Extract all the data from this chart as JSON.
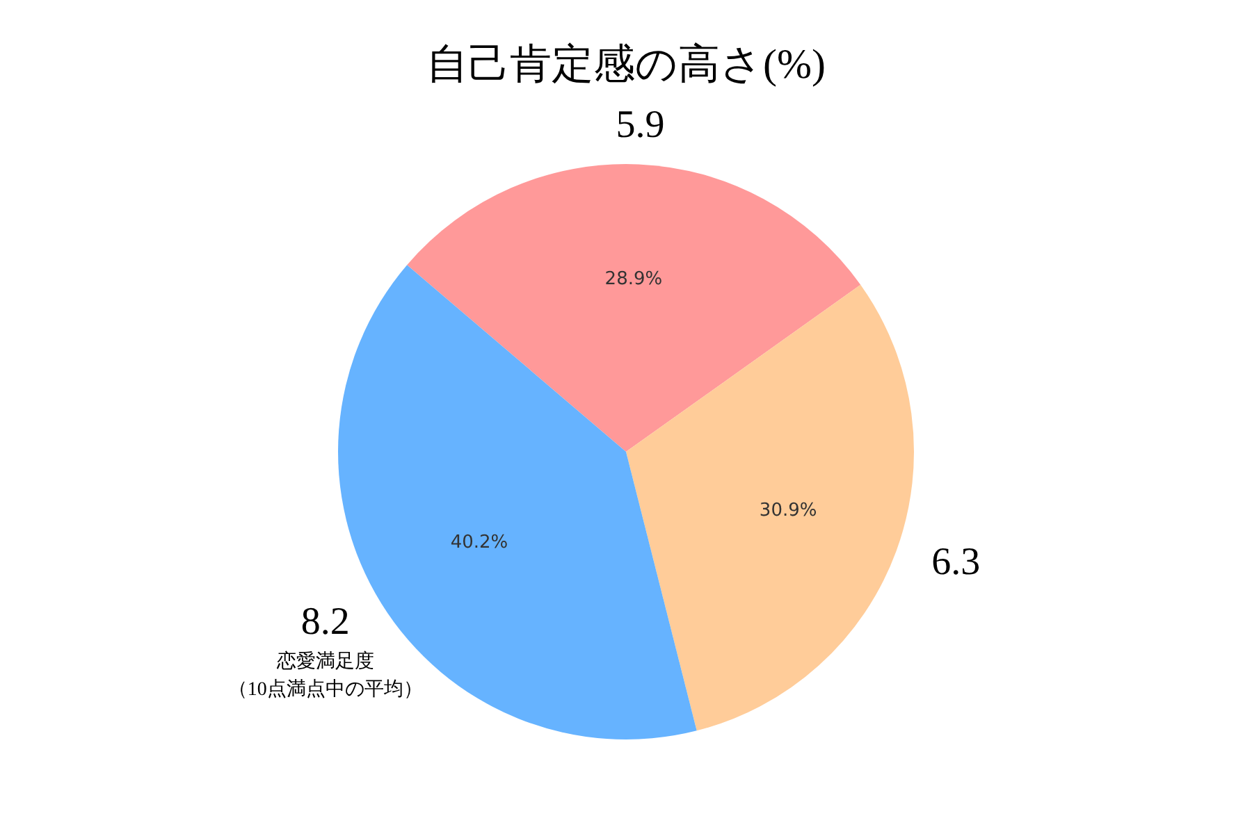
{
  "chart_data": {
    "type": "pie",
    "title": "自己肯定感の高さ(%)",
    "categories": [
      "5.9",
      "6.3",
      "8.2"
    ],
    "values": [
      28.9,
      30.9,
      40.2
    ],
    "colors": [
      "#ff9999",
      "#ffcc99",
      "#66b3ff"
    ],
    "value_labels": [
      "28.9%",
      "30.9%",
      "40.2%"
    ],
    "annotations": [
      "恋愛満足度",
      "（10点満点中の平均）"
    ],
    "legend": false
  }
}
